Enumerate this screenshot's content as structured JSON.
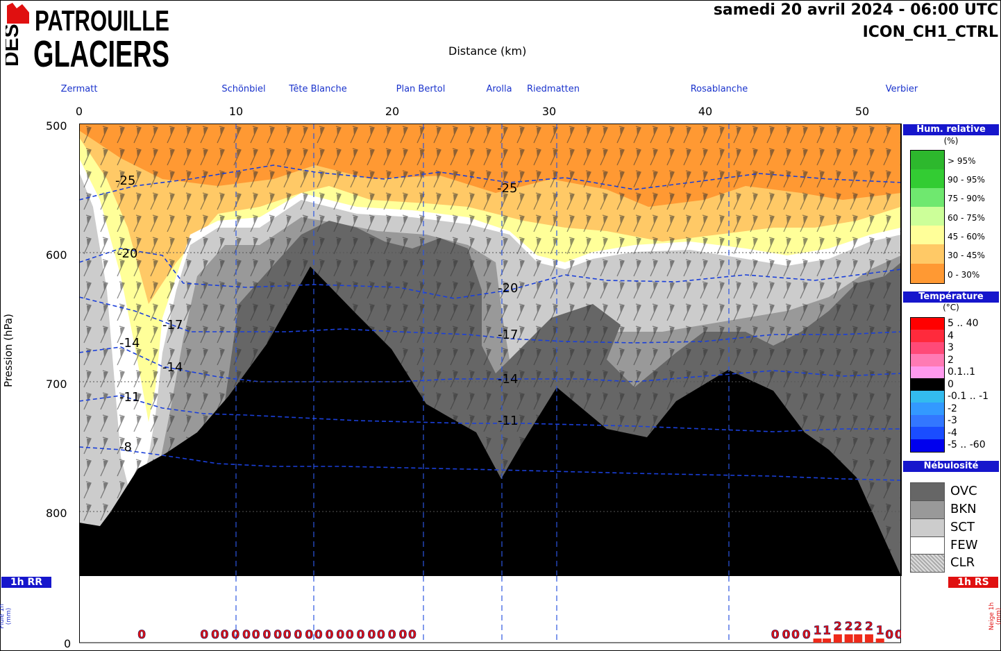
{
  "header": {
    "logo_line1": "PATROUILLE",
    "logo_line2": "GLACIERS",
    "logo_side": "DES",
    "date": "samedi 20 avril 2024 - 06:00 UTC",
    "model": "ICON_CH1_CTRL"
  },
  "axes": {
    "xlabel": "Distance (km)",
    "ylabel": "Pression (hPa)",
    "x_ticks": [
      "0",
      "10",
      "20",
      "30",
      "40",
      "50"
    ],
    "y_ticks": [
      "500",
      "600",
      "700",
      "800"
    ]
  },
  "locations": [
    "Zermatt",
    "Schönbiel",
    "Tête Blanche",
    "Plan Bertol",
    "Arolla",
    "Riedmatten",
    "Rosablanche",
    "Verbier"
  ],
  "legend": {
    "humidity": {
      "title": "Hum. relative",
      "unit": "(%)",
      "items": [
        {
          "label": "> 95%",
          "color": "#2db82d"
        },
        {
          "label": "90 - 95%",
          "color": "#33cc33"
        },
        {
          "label": "75 - 90%",
          "color": "#6fe86f"
        },
        {
          "label": "60 - 75%",
          "color": "#ccff99"
        },
        {
          "label": "45 - 60%",
          "color": "#ffff99"
        },
        {
          "label": "30 - 45%",
          "color": "#ffc966"
        },
        {
          "label": "0 - 30%",
          "color": "#ff9933"
        }
      ]
    },
    "temperature": {
      "title": "Température",
      "unit": "(°C)",
      "items": [
        {
          "label": "5 .. 40",
          "color": "#ff0000"
        },
        {
          "label": "4",
          "color": "#ff2a3c"
        },
        {
          "label": "3",
          "color": "#ff4a78"
        },
        {
          "label": "2",
          "color": "#ff7ab4"
        },
        {
          "label": "0.1..1",
          "color": "#ff99ee"
        },
        {
          "label": "0",
          "color": "#000000"
        },
        {
          "label": "-0.1 .. -1",
          "color": "#33bbee"
        },
        {
          "label": "-2",
          "color": "#3399ff"
        },
        {
          "label": "-3",
          "color": "#3377ff"
        },
        {
          "label": "-4",
          "color": "#1a4dff"
        },
        {
          "label": "-5 .. -60",
          "color": "#0000ee"
        }
      ]
    },
    "clouds": {
      "title": "Nébulosité",
      "items": [
        {
          "label": "OVC",
          "color": "#666666"
        },
        {
          "label": "BKN",
          "color": "#999999"
        },
        {
          "label": "SCT",
          "color": "#cccccc"
        },
        {
          "label": "FEW",
          "color": "#ffffff"
        },
        {
          "label": "CLR",
          "color": "#bbbbbb"
        }
      ]
    }
  },
  "bottom": {
    "rr_label": "1h RR",
    "rs_label": "1h RS",
    "pluie_label": "Pluie 1h (mm)",
    "neige_label": "Neige 1h (mm)",
    "zero_label": "0"
  },
  "chart_data": {
    "type": "heatmap",
    "title": "samedi 20 avril 2024 - 06:00 UTC",
    "xlabel": "Distance (km)",
    "ylabel": "Pression (hPa)",
    "xlim": [
      0,
      52.5
    ],
    "ylim": [
      850,
      500
    ],
    "x_ticks": [
      0,
      10,
      20,
      30,
      40,
      50
    ],
    "y_ticks": [
      500,
      600,
      700,
      800
    ],
    "locations": [
      {
        "name": "Zermatt",
        "km": 0
      },
      {
        "name": "Schönbiel",
        "km": 10
      },
      {
        "name": "Tête Blanche",
        "km": 15
      },
      {
        "name": "Plan Bertol",
        "km": 22
      },
      {
        "name": "Arolla",
        "km": 27
      },
      {
        "name": "Riedmatten",
        "km": 30.5
      },
      {
        "name": "Rosablanche",
        "km": 41.5
      },
      {
        "name": "Verbier",
        "km": 52.5
      }
    ],
    "terrain_pressure_hpa": [
      {
        "km": 0,
        "p": 808
      },
      {
        "km": 1.5,
        "p": 810
      },
      {
        "km": 2,
        "p": 800
      },
      {
        "km": 3.7,
        "p": 784
      },
      {
        "km": 5.5,
        "p": 773
      },
      {
        "km": 7.5,
        "p": 758
      },
      {
        "km": 9.5,
        "p": 730
      },
      {
        "km": 12,
        "p": 700
      },
      {
        "km": 14.8,
        "p": 650
      },
      {
        "km": 18,
        "p": 673
      },
      {
        "km": 20,
        "p": 693
      },
      {
        "km": 22,
        "p": 720
      },
      {
        "km": 24,
        "p": 733
      },
      {
        "km": 27,
        "p": 776
      },
      {
        "km": 30.5,
        "p": 703
      },
      {
        "km": 34,
        "p": 734
      },
      {
        "km": 38,
        "p": 727
      },
      {
        "km": 41.5,
        "p": 690
      },
      {
        "km": 46,
        "p": 723
      },
      {
        "km": 49.5,
        "p": 758
      },
      {
        "km": 52.5,
        "p": 850
      }
    ],
    "isotherm_labels": [
      {
        "value": -25,
        "km": 3.1,
        "p": 542
      },
      {
        "value": -25,
        "km": 27.5,
        "p": 548
      },
      {
        "value": -20,
        "km": 3.2,
        "p": 598
      },
      {
        "value": -20,
        "km": 27.5,
        "p": 626
      },
      {
        "value": -17,
        "km": 6.2,
        "p": 661
      },
      {
        "value": -17,
        "km": 27.5,
        "p": 683
      },
      {
        "value": -14,
        "km": 3.2,
        "p": 675
      },
      {
        "value": -14,
        "km": 6.2,
        "p": 693
      },
      {
        "value": -14,
        "km": 27.5,
        "p": 747
      },
      {
        "value": -11,
        "km": 3.2,
        "p": 704
      },
      {
        "value": -11,
        "km": 27.5,
        "p": 801
      },
      {
        "value": -8,
        "km": 3.1,
        "p": 742
      }
    ],
    "humidity_classes": [
      "> 95%",
      "90 - 95%",
      "75 - 90%",
      "60 - 75%",
      "45 - 60%",
      "30 - 45%",
      "0 - 30%"
    ],
    "cloud_classes": [
      "OVC",
      "BKN",
      "SCT",
      "FEW",
      "CLR"
    ],
    "rain_1h_mm": {
      "km": [
        4,
        8,
        8.7,
        9.3,
        10,
        10.7,
        11.3,
        12,
        12.7,
        13.3,
        14,
        14.7,
        15.3,
        16,
        16.7,
        17.3,
        18,
        18.7,
        19.3,
        20,
        20.7,
        21.3
      ],
      "values": [
        0,
        0,
        0,
        0,
        0,
        0,
        0,
        0,
        0,
        0,
        0,
        0,
        0,
        0,
        0,
        0,
        0,
        0,
        0,
        0,
        0,
        0
      ]
    },
    "snow_1h_mm": {
      "km": [
        44.5,
        45.2,
        45.8,
        46.5,
        47.2,
        47.8,
        48.5,
        49.2,
        49.8,
        50.5,
        51.2,
        51.8,
        52.4
      ],
      "values": [
        0,
        0,
        0,
        0,
        1,
        1,
        2,
        2,
        2,
        2,
        1,
        0,
        0
      ]
    }
  }
}
